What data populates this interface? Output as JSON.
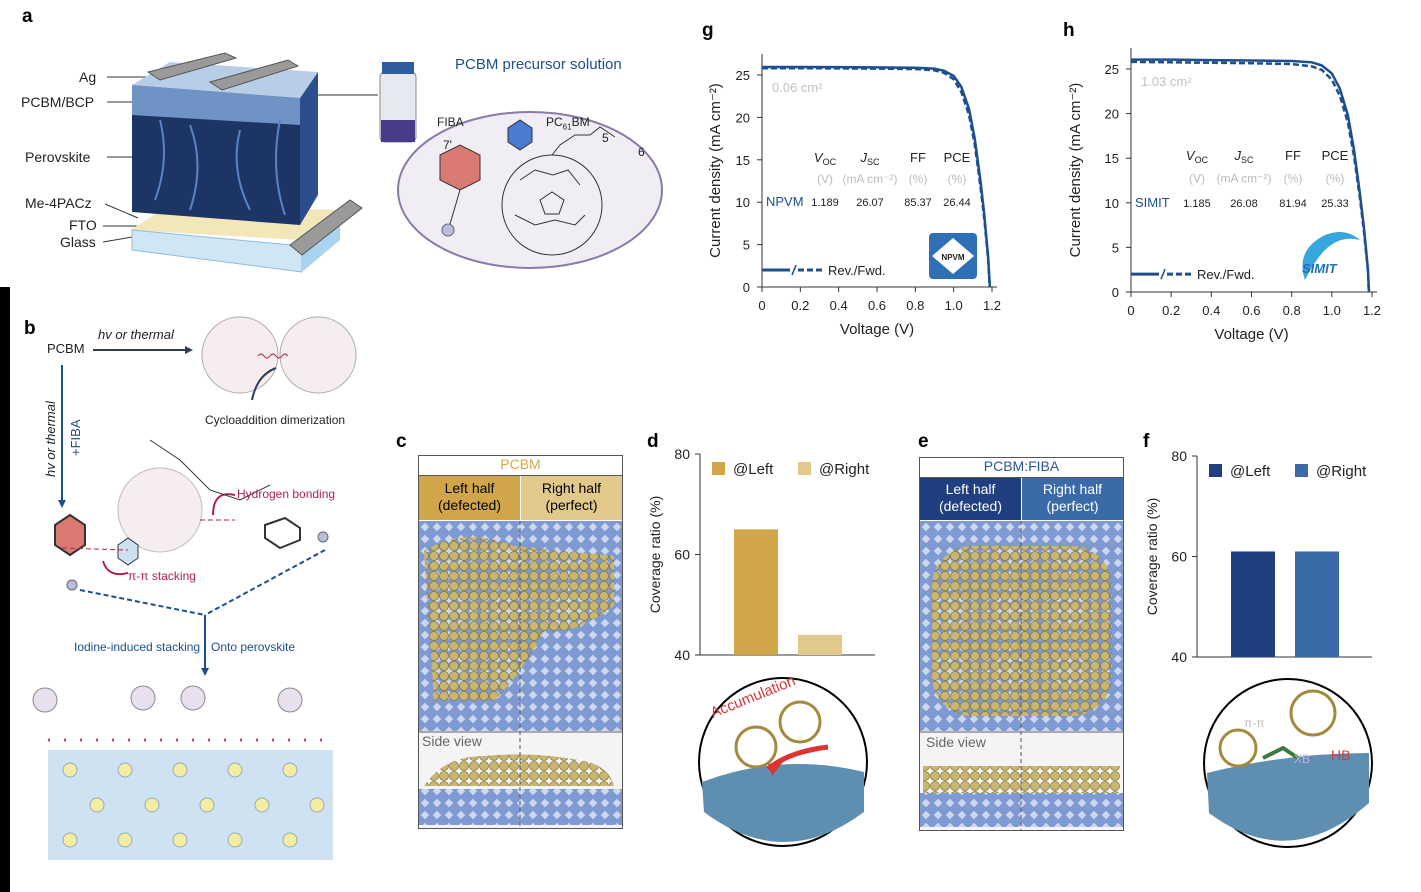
{
  "panel_labels": {
    "a": "a",
    "b": "b",
    "c": "c",
    "d": "d",
    "e": "e",
    "f": "f",
    "g": "g",
    "h": "h"
  },
  "panel_a": {
    "layers": [
      "Ag",
      "PCBM/BCP",
      "Perovskite",
      "Me-4PACz",
      "FTO",
      "Glass"
    ],
    "precursor_title": "PCBM precursor solution",
    "fiba": "FIBA",
    "pcbm_label": "PC₆₁BM",
    "pcbm_base": "PC",
    "pcbm_sub": "61",
    "pcbm_suffix": "BM",
    "num_7": "7'",
    "num_5": "5",
    "num_6": "6"
  },
  "panel_b": {
    "pcbm": "PCBM",
    "hv_thermal_top": "hv or thermal",
    "hv_thermal_side": "hv or thermal",
    "plus_fiba": "+FIBA",
    "cycloaddition": "Cycloaddition dimerization",
    "hydrogen_bonding": "Hydrogen bonding",
    "pi_stacking": "π-π stacking",
    "iodine_stacking": "Iodine-induced stacking",
    "onto_perovskite": "Onto perovskite"
  },
  "panel_c": {
    "title": "PCBM",
    "left": "Left half\n(defected)",
    "left1": "Left half",
    "left2": "(defected)",
    "right1": "Right half",
    "right2": "(perfect)",
    "side_view": "Side view",
    "color": "#d3a84a"
  },
  "panel_e": {
    "title": "PCBM:FIBA",
    "left1": "Left half",
    "left2": "(defected)",
    "right1": "Right half",
    "right2": "(perfect)",
    "side_view": "Side view",
    "color": "#2c5597"
  },
  "panel_d_inset": {
    "label": "Accumulation"
  },
  "panel_f_inset": {
    "pi": "π-π",
    "xb": "XB",
    "hb": "HB"
  },
  "chart_data": [
    {
      "id": "d",
      "type": "bar",
      "categories": [
        "@Left",
        "@Right"
      ],
      "values": [
        65,
        44
      ],
      "ylabel": "Coverage ratio (%)",
      "ylim": [
        40,
        80
      ],
      "yticks": [
        40,
        60,
        80
      ],
      "legend": [
        "@Left",
        "@Right"
      ],
      "legend_placement": "top",
      "colors": [
        "#d1a64a",
        "#e2c98b"
      ]
    },
    {
      "id": "f",
      "type": "bar",
      "categories": [
        "@Left",
        "@Right"
      ],
      "values": [
        61,
        61
      ],
      "ylabel": "Coverage ratio (%)",
      "ylim": [
        40,
        80
      ],
      "yticks": [
        40,
        60,
        80
      ],
      "legend": [
        "@Left",
        "@Right"
      ],
      "legend_placement": "top",
      "colors": [
        "#1f3f80",
        "#3a6aa8"
      ]
    },
    {
      "id": "g",
      "type": "line",
      "xlabel": "Voltage (V)",
      "ylabel": "Current density (mA cm⁻²)",
      "xlim": [
        0,
        1.2
      ],
      "ylim": [
        0,
        27
      ],
      "xticks": [
        "0",
        "0.2",
        "0.4",
        "0.6",
        "0.8",
        "1.0",
        "1.2"
      ],
      "yticks": [
        "0",
        "5",
        "10",
        "15",
        "20",
        "25"
      ],
      "area": "0.06 cm²",
      "legend": "Rev./Fwd.",
      "logo": "NPVM",
      "table": {
        "headers": [
          "V_OC",
          "J_SC",
          "FF",
          "PCE"
        ],
        "units": [
          "(V)",
          "(mA cm⁻²)",
          "(%)",
          "(%)"
        ],
        "row_label": "NPVM",
        "values": [
          "1.189",
          "26.07",
          "85.37",
          "26.44"
        ]
      },
      "series": [
        {
          "name": "Rev.",
          "style": "solid",
          "x": [
            0,
            0.2,
            0.4,
            0.6,
            0.8,
            0.9,
            0.95,
            1.0,
            1.04,
            1.08,
            1.11,
            1.14,
            1.16,
            1.18,
            1.189
          ],
          "y": [
            25.95,
            25.95,
            25.93,
            25.9,
            25.85,
            25.75,
            25.5,
            24.9,
            23.6,
            21,
            17.5,
            12.5,
            8.5,
            3.5,
            0
          ]
        },
        {
          "name": "Fwd.",
          "style": "dashed",
          "x": [
            0,
            0.2,
            0.4,
            0.6,
            0.8,
            0.9,
            0.95,
            1.0,
            1.04,
            1.08,
            1.11,
            1.14,
            1.16,
            1.18,
            1.188
          ],
          "y": [
            25.8,
            25.8,
            25.78,
            25.75,
            25.7,
            25.55,
            25.25,
            24.5,
            23,
            20.3,
            16.8,
            11.8,
            8,
            3.2,
            0
          ]
        }
      ]
    },
    {
      "id": "h",
      "type": "line",
      "xlabel": "Voltage (V)",
      "ylabel": "Current density (mA cm⁻²)",
      "xlim": [
        0,
        1.2
      ],
      "ylim": [
        0,
        27
      ],
      "xticks": [
        "0",
        "0.2",
        "0.4",
        "0.6",
        "0.8",
        "1.0",
        "1.2"
      ],
      "yticks": [
        "0",
        "5",
        "10",
        "15",
        "20",
        "25"
      ],
      "area": "1.03 cm²",
      "legend": "Rev./Fwd.",
      "logo": "SIMIT",
      "table": {
        "headers": [
          "V_OC",
          "J_SC",
          "FF",
          "PCE"
        ],
        "units": [
          "(V)",
          "(mA cm⁻²)",
          "(%)",
          "(%)"
        ],
        "row_label": "SIMIT",
        "values": [
          "1.185",
          "26.08",
          "81.94",
          "25.33"
        ]
      },
      "series": [
        {
          "name": "Rev.",
          "style": "solid",
          "x": [
            0,
            0.2,
            0.4,
            0.6,
            0.8,
            0.9,
            0.95,
            1.0,
            1.04,
            1.08,
            1.11,
            1.14,
            1.16,
            1.18,
            1.185
          ],
          "y": [
            26.05,
            26.05,
            26,
            25.95,
            25.9,
            25.75,
            25.4,
            24.5,
            22.8,
            19.8,
            16,
            11,
            7.2,
            2.5,
            0
          ]
        },
        {
          "name": "Fwd.",
          "style": "dashed",
          "x": [
            0,
            0.2,
            0.4,
            0.6,
            0.8,
            0.9,
            0.95,
            1.0,
            1.04,
            1.08,
            1.11,
            1.14,
            1.16,
            1.18,
            1.184
          ],
          "y": [
            25.8,
            25.75,
            25.7,
            25.65,
            25.55,
            25.3,
            24.9,
            23.8,
            22,
            19,
            15.3,
            10.5,
            6.8,
            2.3,
            0
          ]
        }
      ]
    }
  ]
}
